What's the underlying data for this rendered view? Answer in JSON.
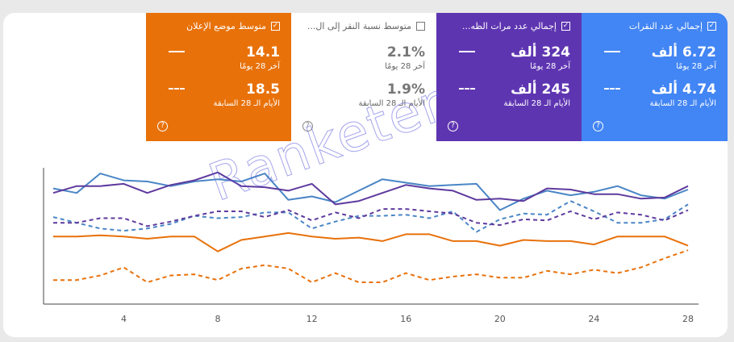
{
  "metrics": [
    {
      "id": "clicks",
      "label": "إجمالي عدد النقرات",
      "checked": true,
      "value": "6.72 ألف",
      "period": "آخر 28 يومًا",
      "prev_value": "4.74 ألف",
      "prev_period": "الأيام الـ 28 السابقة",
      "color": "#4285f4"
    },
    {
      "id": "impressions",
      "label": "إجمالي عدد مرات الظه...",
      "checked": true,
      "value": "324 ألف",
      "period": "آخر 28 يومًا",
      "prev_value": "245 ألف",
      "prev_period": "الأيام الـ 28 السابقة",
      "color": "#5e35b1"
    },
    {
      "id": "ctr",
      "label": "متوسط نسبة النقر إلى ال...",
      "checked": false,
      "value": "2.1%",
      "period": "آخر 28 يومًا",
      "prev_value": "1.9%",
      "prev_period": "الأيام الـ 28 السابقة",
      "color": "#ffffff"
    },
    {
      "id": "position",
      "label": "متوسط موضع الإعلان",
      "checked": true,
      "value": "14.1",
      "period": "آخر 28 يومًا",
      "prev_value": "18.5",
      "prev_period": "الأيام الـ 28 السابقة",
      "color": "#e8710a"
    }
  ],
  "icons": {
    "checkbox": "checkbox-icon",
    "help": "help-circle-icon"
  },
  "watermark": "Ranketer",
  "chart_data": {
    "type": "line",
    "x": [
      1,
      2,
      3,
      4,
      5,
      6,
      7,
      8,
      9,
      10,
      11,
      12,
      13,
      14,
      15,
      16,
      17,
      18,
      19,
      20,
      21,
      22,
      23,
      24,
      25,
      26,
      27,
      28
    ],
    "xticks": [
      4,
      8,
      12,
      16,
      20,
      24,
      28
    ],
    "ylim": [
      0,
      100
    ],
    "grid": false,
    "series": [
      {
        "key": "clicks",
        "style": "solid",
        "color": "#4a86c6",
        "values": [
          82,
          78,
          95,
          89,
          88,
          84,
          88,
          90,
          88,
          95,
          72,
          75,
          70,
          80,
          90,
          87,
          84,
          85,
          86,
          63,
          73,
          80,
          76,
          79,
          84,
          76,
          73,
          81
        ]
      },
      {
        "key": "impressions",
        "style": "solid",
        "color": "#5e3a9e",
        "values": [
          78,
          84,
          84,
          86,
          78,
          85,
          89,
          96,
          84,
          83,
          80,
          86,
          68,
          71,
          78,
          85,
          82,
          80,
          72,
          73,
          71,
          82,
          81,
          77,
          77,
          73,
          74,
          84
        ]
      },
      {
        "key": "clicks_prev",
        "style": "dashed",
        "color": "#4a86c6",
        "values": [
          57,
          52,
          47,
          45,
          47,
          51,
          58,
          56,
          57,
          61,
          61,
          47,
          53,
          58,
          58,
          59,
          56,
          62,
          44,
          55,
          60,
          59,
          71,
          62,
          52,
          52,
          55,
          68
        ]
      },
      {
        "key": "impressions_prev",
        "style": "dashed",
        "color": "#5e3a9e",
        "values": [
          52,
          52,
          56,
          56,
          49,
          53,
          58,
          62,
          62,
          57,
          63,
          54,
          61,
          56,
          64,
          64,
          62,
          60,
          52,
          50,
          55,
          54,
          62,
          55,
          61,
          59,
          54,
          63
        ]
      },
      {
        "key": "position",
        "style": "solid",
        "color": "#e8710a",
        "values": [
          40,
          40,
          41,
          40,
          38,
          40,
          40,
          27,
          37,
          40,
          43,
          40,
          38,
          39,
          36,
          42,
          42,
          36,
          36,
          32,
          37,
          36,
          36,
          33,
          40,
          40,
          40,
          32
        ]
      },
      {
        "key": "position_prev",
        "style": "dashed",
        "color": "#e8710a",
        "values": [
          2,
          2,
          6,
          13,
          0,
          6,
          7,
          2,
          12,
          15,
          12,
          0,
          8,
          0,
          0,
          8,
          2,
          5,
          7,
          4,
          4,
          10,
          7,
          11,
          8,
          13,
          21,
          28
        ]
      }
    ]
  }
}
